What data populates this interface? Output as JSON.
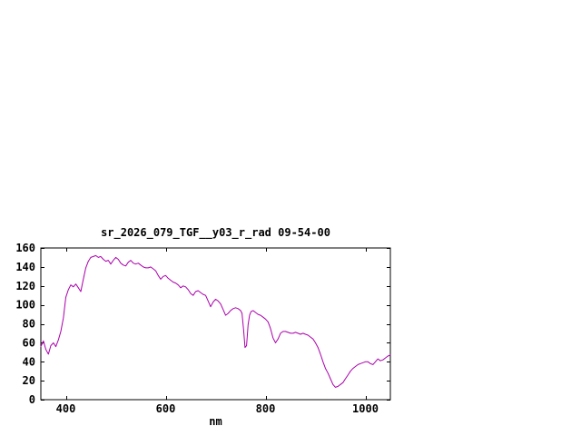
{
  "page": {
    "background": "#ffffff"
  },
  "chart_data": {
    "type": "line",
    "title": "sr_2026_079_TGF__y03_r_rad 09-54-00",
    "xlabel": "nm",
    "ylabel": "",
    "xlim": [
      350,
      1050
    ],
    "ylim": [
      0,
      160
    ],
    "x_ticks": [
      400,
      600,
      800,
      1000
    ],
    "y_ticks": [
      0,
      20,
      40,
      60,
      80,
      100,
      120,
      140,
      160
    ],
    "grid": false,
    "legend": "none",
    "line_color": "#aa00aa",
    "axis_color": "#000000",
    "series": [
      {
        "x": [
          350,
          355,
          360,
          365,
          370,
          375,
          380,
          385,
          390,
          395,
          400,
          405,
          410,
          415,
          420,
          425,
          430,
          435,
          440,
          445,
          450,
          455,
          460,
          465,
          470,
          475,
          480,
          485,
          490,
          495,
          500,
          505,
          510,
          515,
          520,
          525,
          530,
          535,
          540,
          545,
          550,
          555,
          560,
          565,
          570,
          575,
          580,
          585,
          590,
          595,
          600,
          605,
          610,
          615,
          620,
          625,
          630,
          635,
          640,
          645,
          650,
          655,
          660,
          665,
          670,
          675,
          680,
          685,
          690,
          695,
          700,
          705,
          710,
          715,
          720,
          725,
          730,
          735,
          740,
          745,
          750,
          753,
          756,
          759,
          762,
          765,
          768,
          771,
          775,
          780,
          785,
          790,
          795,
          800,
          805,
          810,
          815,
          820,
          825,
          830,
          835,
          840,
          845,
          850,
          855,
          860,
          865,
          870,
          875,
          880,
          885,
          890,
          895,
          900,
          905,
          910,
          915,
          920,
          925,
          930,
          935,
          940,
          945,
          950,
          955,
          960,
          965,
          970,
          975,
          980,
          985,
          990,
          995,
          1000,
          1005,
          1010,
          1015,
          1020,
          1025,
          1030,
          1035,
          1040,
          1045,
          1050
        ],
        "y": [
          56,
          62,
          53,
          48,
          57,
          60,
          56,
          63,
          72,
          86,
          108,
          116,
          121,
          119,
          122,
          118,
          114,
          127,
          139,
          146,
          150,
          151,
          152,
          150,
          151,
          148,
          146,
          147,
          143,
          147,
          150,
          148,
          144,
          142,
          141,
          145,
          147,
          144,
          143,
          144,
          142,
          140,
          139,
          139,
          140,
          138,
          136,
          131,
          127,
          130,
          131,
          128,
          126,
          124,
          123,
          121,
          118,
          120,
          119,
          116,
          112,
          110,
          114,
          115,
          113,
          111,
          110,
          104,
          98,
          103,
          106,
          104,
          101,
          95,
          89,
          91,
          94,
          96,
          97,
          96,
          94,
          91,
          74,
          55,
          57,
          79,
          89,
          93,
          94,
          92,
          90,
          89,
          87,
          85,
          82,
          75,
          65,
          60,
          64,
          70,
          72,
          72,
          71,
          70,
          70,
          71,
          70,
          69,
          70,
          69,
          68,
          66,
          64,
          60,
          55,
          48,
          40,
          33,
          28,
          22,
          16,
          13,
          14,
          16,
          18,
          22,
          26,
          30,
          33,
          35,
          37,
          38,
          39,
          40,
          40,
          38,
          37,
          40,
          43,
          41,
          42,
          44,
          46,
          47
        ]
      }
    ]
  }
}
